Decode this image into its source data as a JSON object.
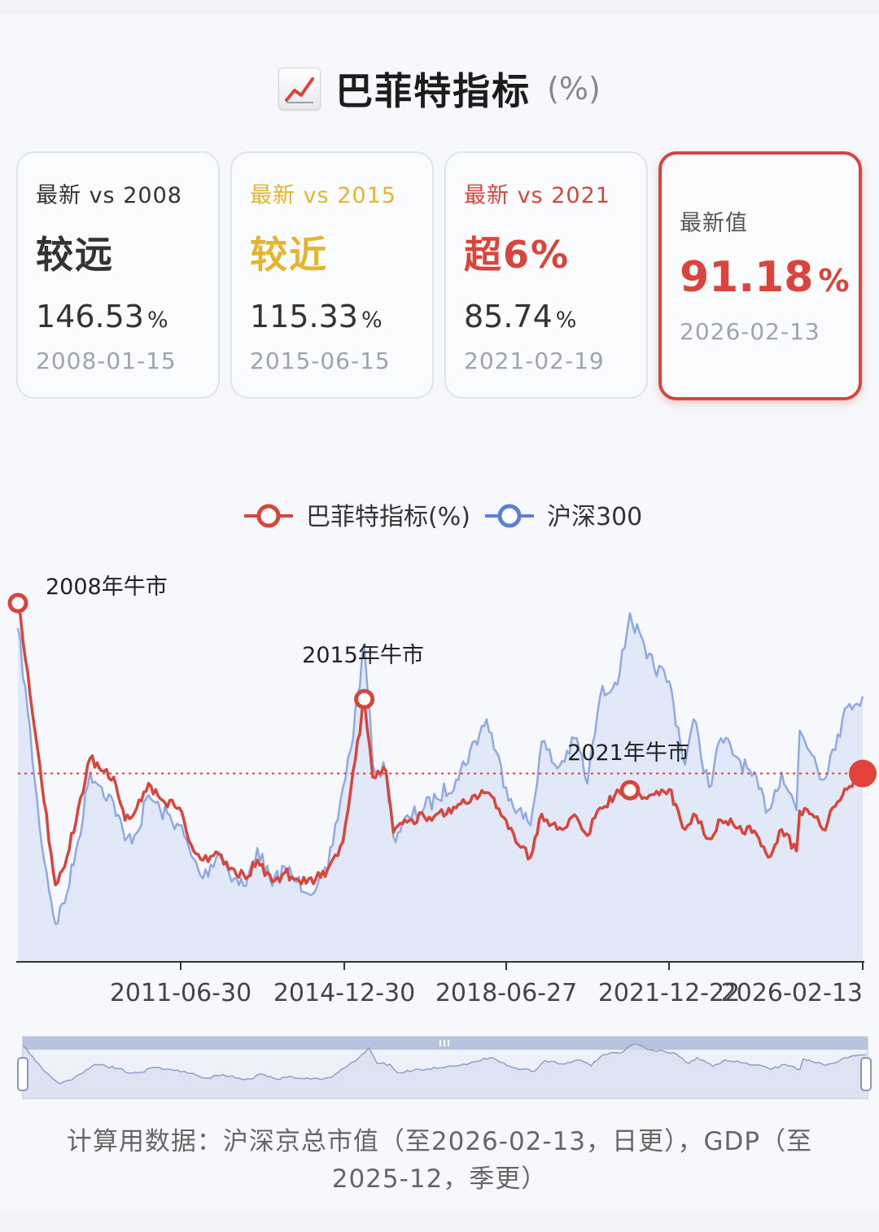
{
  "title": {
    "icon": "chart-increasing-icon",
    "text": "巴菲特指标",
    "unit": "(%)"
  },
  "cards": [
    {
      "label": "最新 vs 2008",
      "verdict": "较远",
      "value": "146.53",
      "unit": "%",
      "date": "2008-01-15",
      "color": "#333333",
      "labelColor": "#333333"
    },
    {
      "label": "最新 vs 2015",
      "verdict": "较近",
      "value": "115.33",
      "unit": "%",
      "date": "2015-06-15",
      "color": "#e6b42c",
      "labelColor": "#e6b42c"
    },
    {
      "label": "最新 vs 2021",
      "verdict": "超6%",
      "value": "85.74",
      "unit": "%",
      "date": "2021-02-19",
      "color": "#d9443b",
      "labelColor": "#d9443b"
    }
  ],
  "latest": {
    "label": "最新值",
    "value": "91.18",
    "unit": "%",
    "date": "2026-02-13",
    "color": "#d9443b"
  },
  "chart_data": {
    "type": "line",
    "legend": [
      {
        "name": "巴菲特指标(%)",
        "color": "#d9443b"
      },
      {
        "name": "沪深300",
        "color": "#5b7fd6"
      }
    ],
    "legend_position": "top-center",
    "x_ticks": [
      "2011-06-30",
      "2014-12-30",
      "2018-06-27",
      "2021-12-22",
      "2026-02-13"
    ],
    "y_axis_visible": false,
    "grid": false,
    "reference_line": {
      "value": 91.18,
      "style": "dotted",
      "color": "#d9443b"
    },
    "annotations": [
      {
        "text": "2008年牛市",
        "x": "2008-01-15",
        "y": 146.53
      },
      {
        "text": "2015年牛市",
        "x": "2015-06-15",
        "y": 115.33
      },
      {
        "text": "2021年牛市",
        "x": "2021-02-19",
        "y": 85.74
      }
    ],
    "latest_point": {
      "x": "2026-02-13",
      "y": 91.18
    },
    "series": [
      {
        "name": "巴菲特指标(%)",
        "color": "#d9443b",
        "points": [
          [
            "2008-01-15",
            146.5
          ],
          [
            "2008-04-01",
            124
          ],
          [
            "2008-07-01",
            95
          ],
          [
            "2008-10-01",
            65
          ],
          [
            "2008-11-04",
            55
          ],
          [
            "2009-02-01",
            64
          ],
          [
            "2009-05-01",
            80
          ],
          [
            "2009-08-01",
            96
          ],
          [
            "2009-11-01",
            92
          ],
          [
            "2010-02-01",
            90
          ],
          [
            "2010-05-01",
            76
          ],
          [
            "2010-08-01",
            80
          ],
          [
            "2010-11-01",
            88
          ],
          [
            "2011-02-01",
            83
          ],
          [
            "2011-06-30",
            80
          ],
          [
            "2011-10-01",
            68
          ],
          [
            "2012-01-01",
            63
          ],
          [
            "2012-05-01",
            65
          ],
          [
            "2012-09-01",
            60
          ],
          [
            "2012-12-01",
            57
          ],
          [
            "2013-03-01",
            63
          ],
          [
            "2013-06-25",
            56
          ],
          [
            "2013-10-01",
            59
          ],
          [
            "2014-01-01",
            57
          ],
          [
            "2014-06-01",
            57
          ],
          [
            "2014-09-01",
            60
          ],
          [
            "2014-12-30",
            69
          ],
          [
            "2015-03-01",
            86
          ],
          [
            "2015-06-15",
            115.3
          ],
          [
            "2015-08-20",
            90
          ],
          [
            "2015-12-01",
            92
          ],
          [
            "2016-01-28",
            72
          ],
          [
            "2016-06-01",
            76
          ],
          [
            "2017-01-01",
            78
          ],
          [
            "2017-06-01",
            80
          ],
          [
            "2018-01-26",
            85
          ],
          [
            "2018-06-27",
            76
          ],
          [
            "2018-10-01",
            68
          ],
          [
            "2019-01-04",
            64
          ],
          [
            "2019-04-01",
            78
          ],
          [
            "2019-08-01",
            73
          ],
          [
            "2020-01-01",
            77
          ],
          [
            "2020-03-23",
            71
          ],
          [
            "2020-07-01",
            80
          ],
          [
            "2020-12-01",
            85
          ],
          [
            "2021-02-19",
            85.7
          ],
          [
            "2021-07-01",
            83
          ],
          [
            "2021-12-22",
            86
          ],
          [
            "2022-04-26",
            73
          ],
          [
            "2022-07-01",
            78
          ],
          [
            "2022-10-31",
            70
          ],
          [
            "2023-02-01",
            76
          ],
          [
            "2023-07-01",
            74
          ],
          [
            "2023-10-01",
            72
          ],
          [
            "2024-02-05",
            64
          ],
          [
            "2024-05-20",
            73
          ],
          [
            "2024-09-13",
            66
          ],
          [
            "2024-10-08",
            79
          ],
          [
            "2025-02-01",
            77
          ],
          [
            "2025-04-07",
            73
          ],
          [
            "2025-08-01",
            82
          ],
          [
            "2025-11-01",
            87
          ],
          [
            "2026-02-13",
            91.2
          ]
        ]
      },
      {
        "name": "沪深300",
        "color": "#5b7fd6",
        "points": [
          [
            "2008-01-15",
            5600
          ],
          [
            "2008-04-01",
            4500
          ],
          [
            "2008-07-01",
            3000
          ],
          [
            "2008-10-01",
            2000
          ],
          [
            "2008-11-04",
            1700
          ],
          [
            "2009-02-01",
            2100
          ],
          [
            "2009-05-01",
            2800
          ],
          [
            "2009-08-01",
            3700
          ],
          [
            "2009-11-01",
            3500
          ],
          [
            "2010-02-01",
            3300
          ],
          [
            "2010-05-01",
            2800
          ],
          [
            "2010-08-01",
            2900
          ],
          [
            "2010-11-01",
            3400
          ],
          [
            "2011-02-01",
            3200
          ],
          [
            "2011-06-30",
            3000
          ],
          [
            "2011-10-01",
            2600
          ],
          [
            "2012-01-01",
            2300
          ],
          [
            "2012-05-01",
            2650
          ],
          [
            "2012-09-01",
            2300
          ],
          [
            "2012-12-01",
            2200
          ],
          [
            "2013-03-01",
            2700
          ],
          [
            "2013-06-25",
            2200
          ],
          [
            "2013-10-01",
            2450
          ],
          [
            "2014-01-01",
            2250
          ],
          [
            "2014-06-01",
            2150
          ],
          [
            "2014-09-01",
            2400
          ],
          [
            "2014-12-30",
            3500
          ],
          [
            "2015-03-01",
            4000
          ],
          [
            "2015-06-15",
            5380
          ],
          [
            "2015-08-20",
            3800
          ],
          [
            "2015-12-01",
            3700
          ],
          [
            "2016-01-28",
            2850
          ],
          [
            "2016-06-01",
            3100
          ],
          [
            "2017-01-01",
            3350
          ],
          [
            "2017-06-01",
            3600
          ],
          [
            "2018-01-26",
            4400
          ],
          [
            "2018-06-27",
            3500
          ],
          [
            "2018-10-01",
            3200
          ],
          [
            "2019-01-04",
            3000
          ],
          [
            "2019-04-01",
            4100
          ],
          [
            "2019-08-01",
            3750
          ],
          [
            "2020-01-01",
            4150
          ],
          [
            "2020-03-23",
            3550
          ],
          [
            "2020-07-01",
            4700
          ],
          [
            "2020-12-01",
            5000
          ],
          [
            "2021-02-19",
            5800
          ],
          [
            "2021-07-01",
            5200
          ],
          [
            "2021-12-22",
            4900
          ],
          [
            "2022-04-26",
            3800
          ],
          [
            "2022-07-01",
            4400
          ],
          [
            "2022-10-31",
            3500
          ],
          [
            "2023-02-01",
            4150
          ],
          [
            "2023-07-01",
            3850
          ],
          [
            "2023-10-01",
            3650
          ],
          [
            "2024-02-05",
            3200
          ],
          [
            "2024-05-20",
            3700
          ],
          [
            "2024-09-13",
            3200
          ],
          [
            "2024-10-08",
            4250
          ],
          [
            "2025-02-01",
            3900
          ],
          [
            "2025-04-07",
            3600
          ],
          [
            "2025-08-01",
            4200
          ],
          [
            "2025-11-01",
            4600
          ],
          [
            "2026-02-13",
            4700
          ]
        ]
      }
    ]
  },
  "slider": {
    "handle_icon": "grip-icon"
  },
  "footer": {
    "line1": "计算用数据：沪深京总市值（至2026-02-13，日更），GDP（至",
    "line2": "2025-12，季更）"
  }
}
